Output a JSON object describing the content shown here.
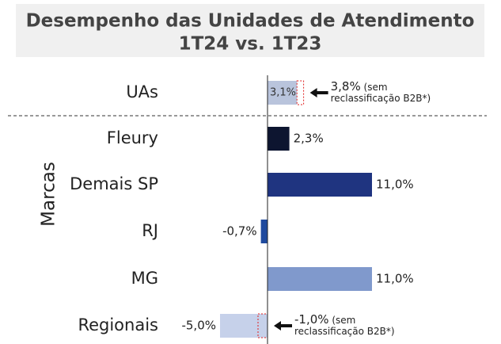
{
  "chart_data": {
    "type": "bar",
    "orientation": "horizontal",
    "title": "Desempenho das Unidades de Atendimento",
    "subtitle": "1T24 vs. 1T23",
    "group_label": "Marcas",
    "categories": [
      "UAs",
      "Fleury",
      "Demais SP",
      "RJ",
      "MG",
      "Regionais"
    ],
    "values": [
      3.1,
      2.3,
      11.0,
      -0.7,
      11.0,
      -5.0
    ],
    "value_labels": [
      "3,1%",
      "2,3%",
      "11,0%",
      "-0,7%",
      "11,0%",
      "-5,0%"
    ],
    "colors": [
      "#b9c4dc",
      "#0d1530",
      "#1f3480",
      "#1f4a9e",
      "#8099cc",
      "#c6d1ea"
    ],
    "reference_values": [
      3.8,
      null,
      null,
      null,
      null,
      -1.0
    ],
    "reference_labels": [
      "3,8%",
      null,
      null,
      null,
      null,
      "-1,0%"
    ],
    "reference_notes": [
      "(sem reclassificação B2B*)",
      null,
      null,
      null,
      null,
      "(sem reclassificação B2B*)"
    ]
  }
}
